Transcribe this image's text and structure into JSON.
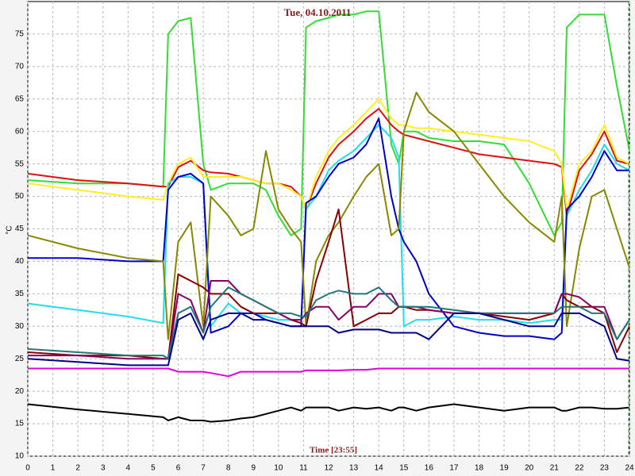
{
  "chart_data": {
    "type": "line",
    "title": "Tue, 04.10.2011",
    "x_label": "Time [23:55]",
    "y_label": "°C",
    "x": [
      0,
      2,
      4,
      5.4,
      5.6,
      6,
      6.5,
      7,
      7.3,
      8,
      8.5,
      9,
      9.5,
      10,
      10.5,
      10.9,
      11.1,
      11.5,
      12,
      12.4,
      13,
      13.5,
      14,
      14.5,
      14.8,
      15,
      15.5,
      16,
      17,
      18,
      19,
      20,
      21,
      21.3,
      21.5,
      22,
      22.5,
      23,
      23.5,
      24
    ],
    "xlim": [
      0,
      24
    ],
    "xticks": [
      0,
      1,
      2,
      3,
      4,
      5,
      6,
      7,
      8,
      9,
      10,
      11,
      12,
      13,
      14,
      15,
      16,
      17,
      18,
      19,
      20,
      21,
      22,
      23,
      24
    ],
    "ylim": [
      10,
      80
    ],
    "yticks": [
      10,
      15,
      20,
      25,
      30,
      35,
      40,
      45,
      50,
      55,
      60,
      65,
      70,
      75
    ],
    "grid": true,
    "series": [
      {
        "color": "#33dd33",
        "values": [
          52.5,
          52,
          52,
          51.5,
          75,
          77,
          77.5,
          55,
          51,
          52,
          52,
          52,
          51,
          47,
          44,
          45,
          76,
          77,
          77.5,
          78,
          78,
          78.5,
          78.5,
          58,
          55,
          60,
          60,
          59,
          58.5,
          58.5,
          58,
          52,
          44,
          46,
          76,
          78,
          78,
          78,
          67,
          57
        ]
      },
      {
        "color": "#dd1111",
        "values": [
          53.5,
          52.5,
          52,
          51.5,
          51.5,
          54.5,
          55.5,
          54,
          53.7,
          53.5,
          53,
          52.5,
          52,
          52,
          51.5,
          50,
          48,
          52,
          56,
          58,
          60,
          62,
          63.5,
          61,
          60,
          59.5,
          59,
          58.5,
          57.5,
          56.5,
          56,
          55.5,
          55,
          54.5,
          47,
          54,
          56.5,
          60,
          55.5,
          55
        ]
      },
      {
        "color": "#ffee22",
        "values": [
          52,
          51,
          50,
          49.5,
          52,
          55,
          56,
          53,
          53,
          53,
          53,
          52.5,
          52,
          52,
          51,
          50,
          48,
          53,
          57,
          59,
          61,
          63,
          65,
          62,
          61,
          61,
          60.5,
          60.5,
          60,
          59.5,
          59,
          58.5,
          57,
          55,
          48,
          55,
          57,
          61,
          56,
          55
        ]
      },
      {
        "color": "#22ddee",
        "values": [
          33.5,
          32.5,
          31.5,
          30.5,
          52,
          53,
          53,
          52,
          30,
          33.5,
          32,
          32,
          31.5,
          31,
          31,
          30.5,
          48,
          50,
          54,
          55.5,
          57,
          59,
          61,
          59,
          56,
          30,
          31,
          31,
          31.5,
          31,
          31,
          30.5,
          31,
          31,
          47,
          51,
          54,
          58,
          55,
          54
        ]
      },
      {
        "color": "#0000cc",
        "values": [
          40.5,
          40.5,
          40,
          40,
          51,
          53,
          53.5,
          52,
          29,
          30,
          32,
          32,
          31,
          30.5,
          30,
          30,
          49,
          50,
          53,
          55,
          56,
          58,
          62,
          50,
          45,
          43,
          40,
          35,
          30,
          29,
          28.5,
          28.5,
          28,
          29,
          48,
          50,
          53,
          57,
          54,
          54
        ]
      },
      {
        "color": "#888800",
        "values": [
          44,
          42,
          40.5,
          40,
          28,
          43,
          46,
          30,
          50,
          47,
          44,
          45,
          57,
          48,
          45,
          43,
          30,
          40,
          44,
          46,
          50,
          53,
          55,
          44,
          45,
          60,
          66,
          63,
          60,
          55,
          50,
          46,
          43,
          50,
          30,
          42,
          50,
          51,
          45,
          39
        ]
      },
      {
        "color": "#880000",
        "values": [
          26,
          25.5,
          25.5,
          25,
          25,
          38,
          37,
          36,
          35,
          35,
          33,
          32,
          32,
          32,
          31,
          30.5,
          30,
          37,
          43,
          48,
          30,
          31,
          32,
          32,
          33,
          33,
          32.5,
          32.5,
          32,
          32,
          31.5,
          31,
          32,
          35,
          34,
          33,
          33,
          32,
          26,
          30
        ]
      },
      {
        "color": "#880066",
        "values": [
          25.5,
          25.5,
          25,
          25,
          25,
          35,
          34,
          29,
          37,
          37,
          35,
          34,
          33,
          32,
          31,
          31,
          32,
          33,
          33,
          31,
          33,
          33,
          35,
          35,
          33,
          33,
          33,
          32.5,
          32,
          32,
          32,
          32,
          32,
          35,
          35,
          34.5,
          33,
          33,
          28,
          31
        ]
      },
      {
        "color": "#227777",
        "values": [
          26.5,
          26,
          25.5,
          25.5,
          25,
          32,
          33,
          29,
          33,
          36,
          35,
          34,
          33,
          32,
          32,
          31.5,
          31.5,
          34,
          35,
          35.5,
          35,
          35,
          36,
          34,
          33,
          33,
          33,
          33,
          32.5,
          32,
          32,
          32,
          32,
          33,
          33,
          33,
          32,
          32,
          28,
          31
        ]
      },
      {
        "color": "#000088",
        "values": [
          25,
          24.5,
          24,
          24,
          24,
          31,
          32,
          28,
          31,
          32,
          32,
          31,
          31,
          30.5,
          30,
          30,
          30,
          30,
          30,
          29,
          29.5,
          29.5,
          29.5,
          29,
          29,
          29,
          29,
          28,
          32,
          32,
          31,
          30,
          30,
          32,
          32,
          32,
          31,
          30,
          25,
          24.7
        ]
      },
      {
        "color": "#dd00dd",
        "values": [
          23.5,
          23.5,
          23.5,
          23.5,
          23.5,
          23,
          23,
          23,
          22.8,
          22.3,
          23,
          23,
          23,
          23,
          23,
          23,
          23.2,
          23.2,
          23.2,
          23.2,
          23.3,
          23.3,
          23.5,
          23.5,
          23.5,
          23.5,
          23.5,
          23.5,
          23.5,
          23.5,
          23.5,
          23.5,
          23.5,
          23.5,
          23.5,
          23.5,
          23.5,
          23.5,
          23.5,
          23.5
        ]
      },
      {
        "color": "#000000",
        "values": [
          18,
          17.2,
          16.5,
          16,
          15.5,
          16,
          15.5,
          15.5,
          15.3,
          15.5,
          15.8,
          16,
          16.5,
          17,
          17.5,
          17,
          17.5,
          17.5,
          17.5,
          17,
          17.5,
          17.3,
          17.5,
          17,
          17.5,
          17.5,
          17,
          17.5,
          18,
          17.5,
          17,
          17.5,
          17.5,
          17,
          17,
          17.5,
          17.5,
          17.3,
          17.3,
          17.5
        ]
      }
    ]
  }
}
